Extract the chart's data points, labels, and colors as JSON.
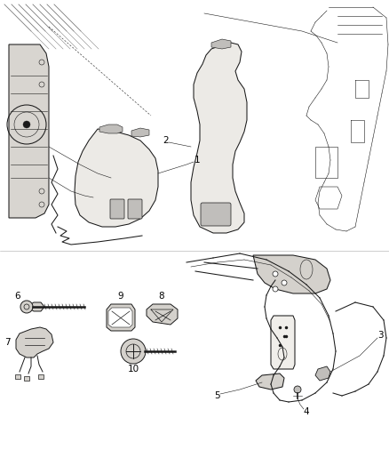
{
  "bg_color": "#ffffff",
  "fig_width": 4.38,
  "fig_height": 5.33,
  "dpi": 100,
  "line_color": "#1a1a1a",
  "label_fontsize": 7.5,
  "lw": 0.75,
  "thin_lw": 0.4,
  "gray_fill": "#e8e6e2",
  "dark_gray": "#c0bebb",
  "mid_gray": "#d4d1cc",
  "light_gray": "#f0eeea",
  "panel_fill": "#eceae6",
  "struct_fill": "#d8d5d0"
}
